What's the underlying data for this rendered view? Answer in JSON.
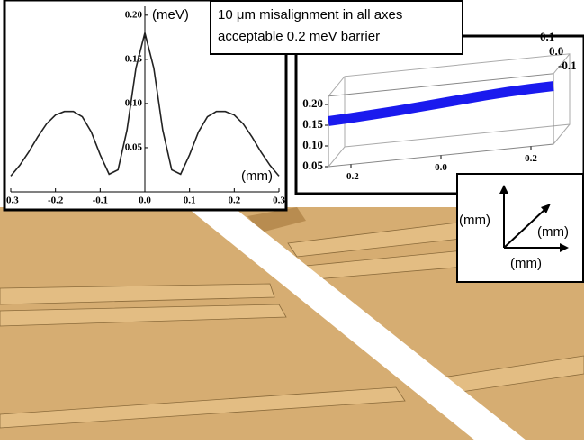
{
  "annotation": [
    "10 μm misalignment in all axes",
    "acceptable 0.2 meV barrier"
  ],
  "axes_legend": {
    "labels": [
      "(mm)",
      "(mm)",
      "(mm)"
    ]
  },
  "chart_data": [
    {
      "type": "line",
      "x_label": "(mm)",
      "y_label": "(meV)",
      "color": "#222222",
      "x": [
        -0.3,
        -0.28,
        -0.26,
        -0.24,
        -0.22,
        -0.2,
        -0.18,
        -0.16,
        -0.14,
        -0.12,
        -0.1,
        -0.08,
        -0.06,
        -0.04,
        -0.02,
        0,
        0.02,
        0.04,
        0.06,
        0.08,
        0.1,
        0.12,
        0.14,
        0.16,
        0.18,
        0.2,
        0.22,
        0.24,
        0.26,
        0.28,
        0.3
      ],
      "values": [
        0.018,
        0.03,
        0.045,
        0.062,
        0.077,
        0.087,
        0.091,
        0.091,
        0.085,
        0.068,
        0.042,
        0.02,
        0.025,
        0.07,
        0.14,
        0.18,
        0.14,
        0.07,
        0.025,
        0.02,
        0.042,
        0.068,
        0.085,
        0.091,
        0.091,
        0.087,
        0.077,
        0.062,
        0.045,
        0.03,
        0.018
      ],
      "xlim": [
        -0.3,
        0.3
      ],
      "ylim": [
        0,
        0.21
      ],
      "xticks": [
        -0.3,
        -0.2,
        -0.1,
        {
          "value": 0,
          "label": "0.0"
        },
        0.1,
        0.2,
        0.3
      ],
      "yticks": [
        0.05,
        {
          "value": 0.1,
          "label": "0.10"
        },
        0.15,
        {
          "value": 0.2,
          "label": "0.20"
        }
      ]
    },
    {
      "type": "line3d",
      "color": "#1a1aee",
      "x": [
        -0.25,
        -0.2,
        -0.15,
        -0.1,
        -0.05,
        0,
        0.05,
        0.1,
        0.15,
        0.2,
        0.25
      ],
      "values": [
        0.16,
        0.162,
        0.165,
        0.168,
        0.172,
        0.176,
        0.18,
        0.184,
        0.187,
        0.189,
        0.19
      ],
      "xlim": [
        -0.25,
        0.25
      ],
      "ylim": [
        0.05,
        0.22
      ],
      "xticks": [
        -0.2,
        {
          "value": 0,
          "label": "0.0"
        },
        0.2
      ],
      "yticks": [
        0.05,
        {
          "value": 0.1,
          "label": "0.10"
        },
        0.15,
        {
          "value": 0.2,
          "label": "0.20"
        }
      ],
      "zticks": [
        0.1,
        {
          "value": 0,
          "label": "0.0"
        },
        -0.1
      ]
    }
  ]
}
